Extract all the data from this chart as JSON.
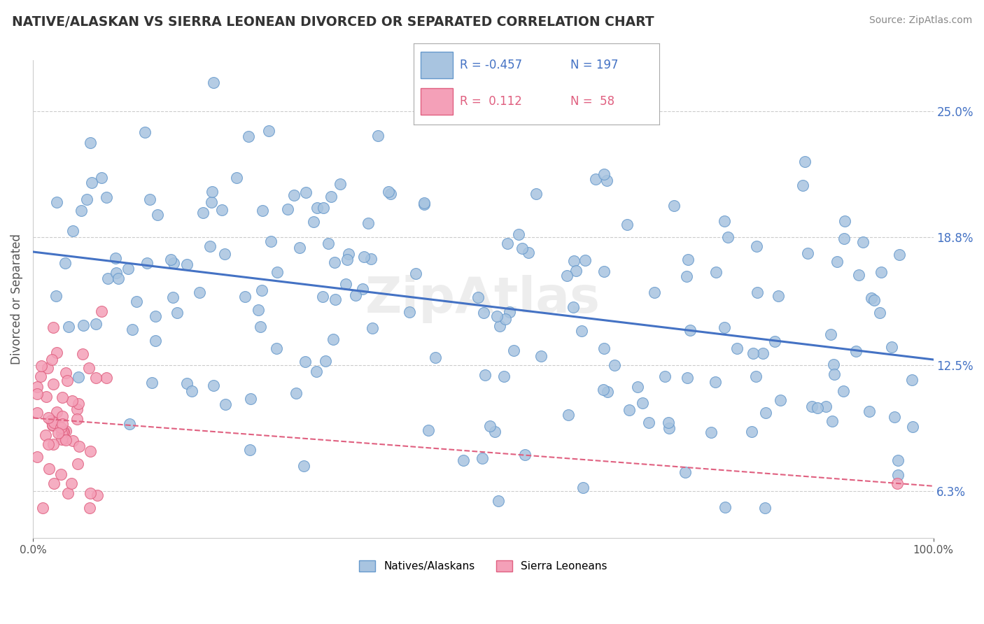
{
  "title": "NATIVE/ALASKAN VS SIERRA LEONEAN DIVORCED OR SEPARATED CORRELATION CHART",
  "source_text": "Source: ZipAtlas.com",
  "ylabel": "Divorced or Separated",
  "xlim": [
    0,
    1.0
  ],
  "ylim": [
    0.04,
    0.275
  ],
  "yticks": [
    0.063,
    0.125,
    0.188,
    0.25
  ],
  "ytick_labels": [
    "6.3%",
    "12.5%",
    "18.8%",
    "25.0%"
  ],
  "blue_R": -0.457,
  "blue_N": 197,
  "pink_R": 0.112,
  "pink_N": 58,
  "blue_color": "#a8c4e0",
  "blue_edge_color": "#6699cc",
  "pink_color": "#f4a0b8",
  "pink_edge_color": "#e06080",
  "blue_line_color": "#4472c4",
  "pink_line_color": "#e06080",
  "grid_color": "#cccccc",
  "background_color": "#ffffff",
  "title_color": "#333333",
  "watermark_text": "ZipAtlas",
  "legend_label_blue": "Natives/Alaskans",
  "legend_label_pink": "Sierra Leoneans"
}
